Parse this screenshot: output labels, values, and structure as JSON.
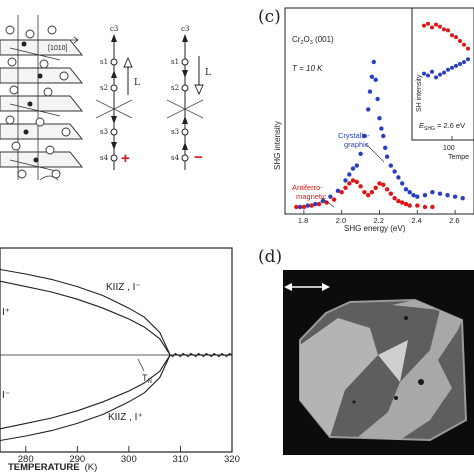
{
  "panel_a": {
    "vec_label": "[1010]",
    "sym_left": {
      "axis": "c3",
      "sites": [
        "s1",
        "s2",
        "s3",
        "s4"
      ],
      "vector": "L",
      "sign": "+"
    },
    "sym_right": {
      "axis": "c3",
      "sites": [
        "s1",
        "s2",
        "s3",
        "s4"
      ],
      "vector": "L",
      "sign": "−"
    }
  },
  "panel_b": {
    "xlabel": "TEMPERATURE",
    "xunit": "(K)",
    "xticks": [
      "280",
      "290",
      "300",
      "310",
      "320"
    ],
    "curve_labels": [
      "KIIZ ,  I⁻",
      "I⁺",
      "I⁻",
      "KIIZ ,  I⁺"
    ],
    "tn_label": "T",
    "tn_sub": "N"
  },
  "panel_c": {
    "panel_label": "(c)",
    "material": "Cr",
    "material_sub1": "2",
    "material_mid": "O",
    "material_sub2": "3",
    "material_tail": " (001)",
    "temperature": "T = 10 K",
    "ylabel": "SHG intensity",
    "xlabel": "SHG energy (eV)",
    "xticks": [
      "1.8",
      "2.0",
      "2.2",
      "2.4",
      "2.6"
    ],
    "label_cryst_line1": "Crystallo-",
    "label_cryst_line2": "graphic",
    "label_af_line1": "Antiferro-",
    "label_af_line2": "magnetic",
    "inset": {
      "ylabel": "SH intensity",
      "energy_prefix": "E",
      "energy_sub": "SHG",
      "energy_value": " = 2.6 eV",
      "xtick": "100",
      "xlabel": "Tempe"
    },
    "colors": {
      "crystallographic": "#2a3fbf",
      "antiferromagnetic": "#e01515"
    }
  },
  "panel_d": {
    "panel_label": "(d)"
  },
  "chart_data": [
    {
      "type": "scatter",
      "title": "",
      "xlabel": "SHG energy (eV)",
      "ylabel": "SHG intensity",
      "xlim": [
        1.7,
        2.7
      ],
      "series": [
        {
          "name": "Crystallographic",
          "x": [
            1.78,
            1.82,
            1.86,
            1.9,
            1.94,
            1.98,
            2.02,
            2.04,
            2.06,
            2.08,
            2.1,
            2.12,
            2.14,
            2.15,
            2.16,
            2.17,
            2.18,
            2.19,
            2.2,
            2.21,
            2.22,
            2.23,
            2.24,
            2.26,
            2.28,
            2.3,
            2.32,
            2.34,
            2.36,
            2.38,
            2.4,
            2.44,
            2.48,
            2.52,
            2.56,
            2.6,
            2.64
          ],
          "y": [
            0.02,
            0.03,
            0.04,
            0.06,
            0.09,
            0.13,
            0.2,
            0.24,
            0.28,
            0.3,
            0.38,
            0.5,
            0.68,
            0.8,
            0.9,
            1.0,
            0.88,
            0.75,
            0.62,
            0.55,
            0.5,
            0.42,
            0.36,
            0.3,
            0.26,
            0.22,
            0.18,
            0.14,
            0.12,
            0.1,
            0.09,
            0.1,
            0.12,
            0.11,
            0.1,
            0.09,
            0.08
          ]
        },
        {
          "name": "Antiferromagnetic",
          "x": [
            1.76,
            1.8,
            1.84,
            1.88,
            1.92,
            1.96,
            2.0,
            2.02,
            2.04,
            2.06,
            2.08,
            2.1,
            2.12,
            2.14,
            2.16,
            2.18,
            2.2,
            2.22,
            2.24,
            2.26,
            2.28,
            2.3,
            2.32,
            2.34,
            2.36,
            2.4,
            2.44,
            2.48
          ],
          "y": [
            0.02,
            0.02,
            0.03,
            0.04,
            0.05,
            0.07,
            0.12,
            0.15,
            0.18,
            0.2,
            0.19,
            0.16,
            0.12,
            0.1,
            0.12,
            0.15,
            0.18,
            0.17,
            0.14,
            0.11,
            0.08,
            0.06,
            0.05,
            0.04,
            0.03,
            0.03,
            0.02,
            0.02
          ]
        }
      ]
    },
    {
      "type": "line",
      "title": "",
      "xlabel": "TEMPERATURE (K)",
      "ylabel": "",
      "xlim": [
        275,
        320
      ],
      "x_ticks": [
        280,
        290,
        300,
        310,
        320
      ],
      "transition_temperature": 308,
      "series": [
        {
          "name": "KIIZ, I⁻",
          "x": [
            275,
            280,
            285,
            290,
            295,
            300,
            303,
            306,
            308,
            312,
            316,
            320
          ],
          "y": [
            0.95,
            0.9,
            0.84,
            0.76,
            0.66,
            0.52,
            0.42,
            0.25,
            0.0,
            0.0,
            0.0,
            0.0
          ]
        },
        {
          "name": "I⁺",
          "x": [
            275,
            280,
            285,
            290,
            295,
            300,
            303,
            306,
            308,
            312,
            316,
            320
          ],
          "y": [
            0.82,
            0.76,
            0.7,
            0.62,
            0.52,
            0.4,
            0.31,
            0.18,
            0.0,
            0.0,
            0.0,
            0.0
          ]
        },
        {
          "name": "I⁻",
          "x": [
            275,
            280,
            285,
            290,
            295,
            300,
            303,
            306,
            308,
            312,
            316,
            320
          ],
          "y": [
            -0.82,
            -0.76,
            -0.7,
            -0.62,
            -0.52,
            -0.4,
            -0.31,
            -0.18,
            0.0,
            0.0,
            0.0,
            0.0
          ]
        },
        {
          "name": "KIIZ, I⁺",
          "x": [
            275,
            280,
            285,
            290,
            295,
            300,
            303,
            306,
            308,
            312,
            316,
            320
          ],
          "y": [
            -0.95,
            -0.9,
            -0.84,
            -0.76,
            -0.66,
            -0.52,
            -0.42,
            -0.25,
            0.0,
            0.0,
            0.0,
            0.0
          ]
        }
      ]
    },
    {
      "type": "scatter",
      "title": "",
      "xlabel": "Tempe",
      "ylabel": "SH intensity",
      "series": [
        {
          "name": "antiferromagnetic",
          "x": [
            0,
            10,
            20,
            30,
            40,
            50,
            60,
            70,
            80,
            90,
            100,
            110
          ],
          "y": [
            0.9,
            0.92,
            0.88,
            0.91,
            0.89,
            0.86,
            0.85,
            0.8,
            0.78,
            0.74,
            0.7,
            0.66
          ]
        },
        {
          "name": "crystallographic",
          "x": [
            0,
            10,
            20,
            30,
            40,
            50,
            60,
            70,
            80,
            90,
            100,
            110
          ],
          "y": [
            0.4,
            0.38,
            0.42,
            0.36,
            0.39,
            0.41,
            0.44,
            0.46,
            0.48,
            0.5,
            0.52,
            0.55
          ]
        }
      ]
    }
  ]
}
